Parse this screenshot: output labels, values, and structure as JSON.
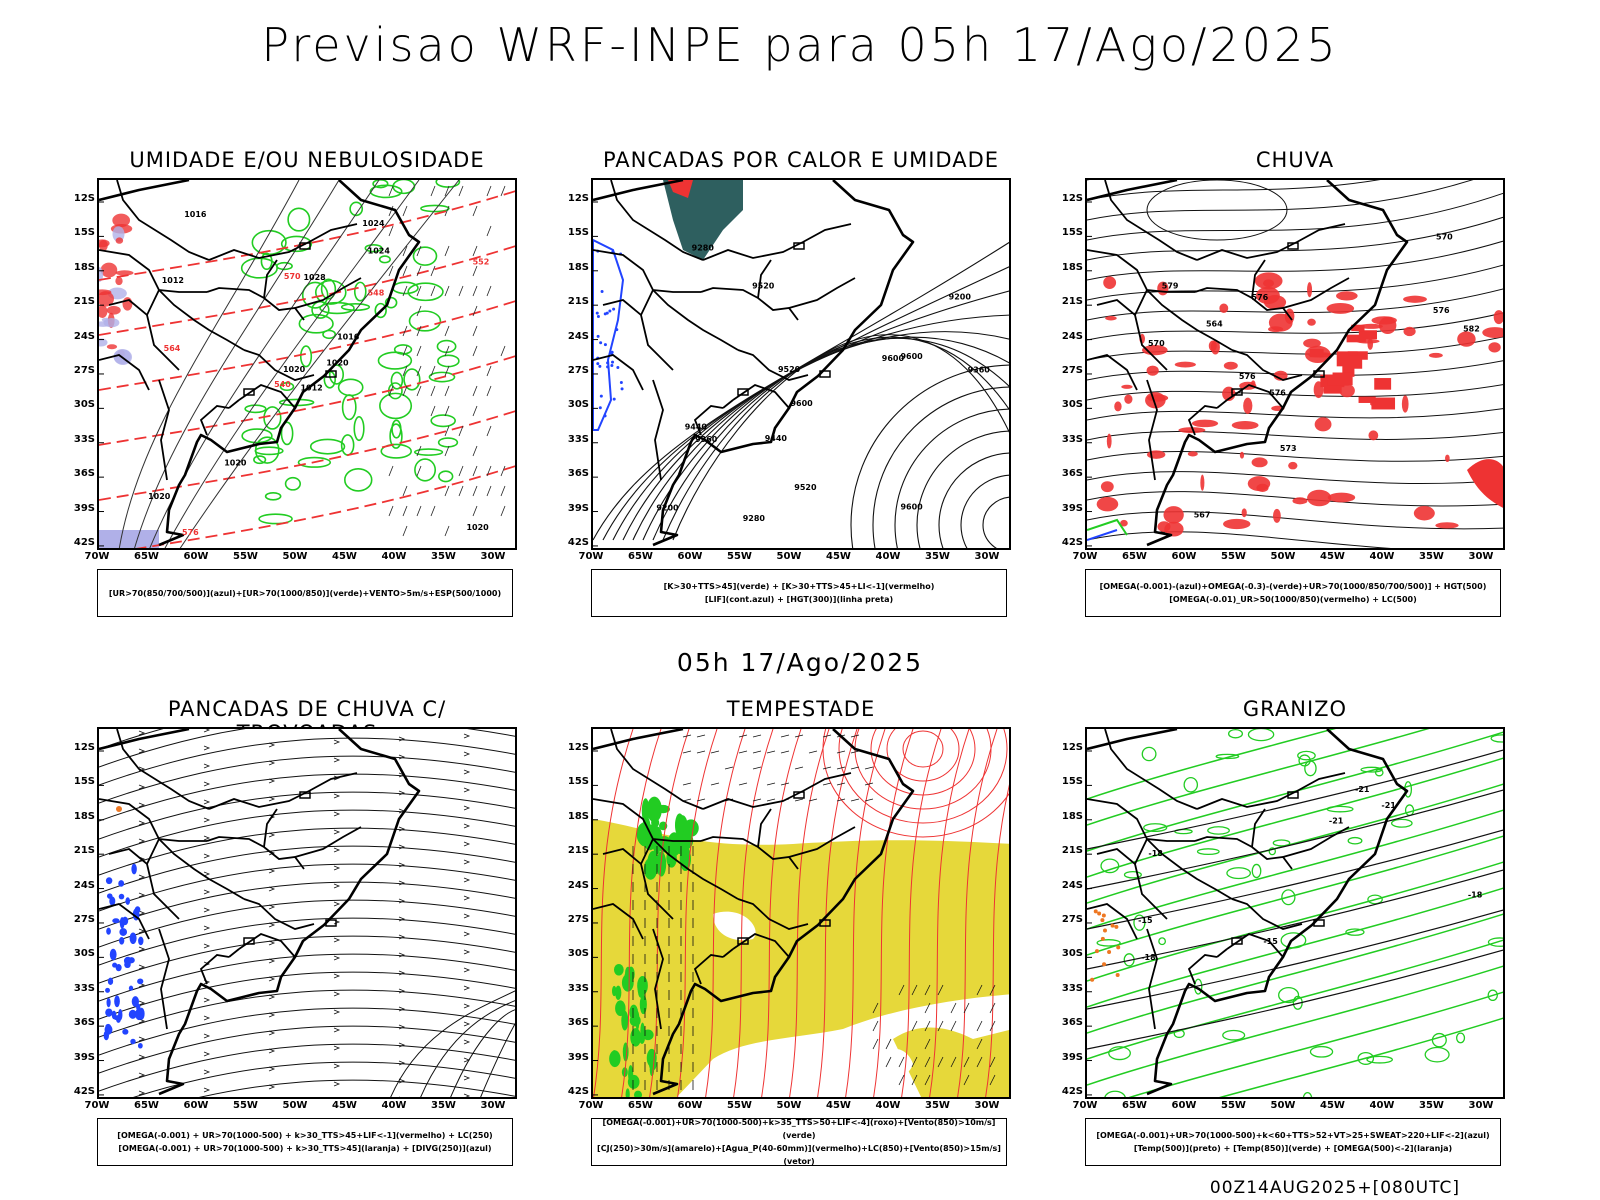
{
  "title": "Previsao WRF-INPE  para 05h 17/Ago/2025",
  "mid_date": "05h 17/Ago/2025",
  "footer": "00Z14AUG2025+[080UTC]",
  "lat_ticks": [
    "12S",
    "15S",
    "18S",
    "21S",
    "24S",
    "27S",
    "30S",
    "33S",
    "36S",
    "39S",
    "42S"
  ],
  "lon_ticks": [
    "70W",
    "65W",
    "60W",
    "55W",
    "50W",
    "45W",
    "40W",
    "35W",
    "30W"
  ],
  "colors": {
    "green": "#22cc22",
    "red": "#ee3333",
    "blue": "#2244ff",
    "yellow": "#e6d83a",
    "teal": "#2e5f5f",
    "lavender": "#b0b0e8",
    "orange": "#ee7722"
  },
  "panels": [
    {
      "title": "UMIDADE E/OU NEBULOSIDADE",
      "legend": [
        "[UR>70(850/700/500)](azul)+[UR>70(1000/850)](verde)+VENTO>5m/s+ESP(500/1000)"
      ],
      "labels": [
        "1012",
        "1012",
        "1020",
        "1020",
        "1016",
        "1020",
        "1024",
        "1028",
        "1024",
        "1020",
        "1016",
        "1020",
        "564",
        "552",
        "540",
        "548",
        "576",
        "570"
      ]
    },
    {
      "title": "PANCADAS POR CALOR E UMIDADE",
      "legend": [
        "[K>30+TTS>45](verde) + [K>30+TTS>45+LI<-1](vermelho)",
        "[LIF](cont.azul) + [HGT(300)](linha preta)"
      ],
      "labels": [
        "9600",
        "9600",
        "9600",
        "9600",
        "9520",
        "9520",
        "9520",
        "9440",
        "9440",
        "9360",
        "9360",
        "9280",
        "9280",
        "9200",
        "9200"
      ]
    },
    {
      "title": "CHUVA",
      "legend": [
        "[OMEGA(-0.001)-(azul)+OMEGA(-0.3)-(verde)+UR>70(1000/850/700/500)] + HGT(500)",
        "[OMEGA(-0.01)_UR>50(1000/850)(vermelho) + LC(500)"
      ],
      "labels": [
        "582",
        "576",
        "570",
        "576",
        "576",
        "573",
        "567",
        "570",
        "579",
        "576",
        "564"
      ]
    },
    {
      "title": "PANCADAS DE CHUVA C/ TROVOADAS",
      "legend": [
        "[OMEGA(-0.001) + UR>70(1000-500) + k>30_TTS>45+LIF<-1](vermelho) + LC(250)",
        "[OMEGA(-0.001) + UR>70(1000-500) + k>30_TTS>45](laranja) + [DIVG(250)](azul)"
      ],
      "labels": []
    },
    {
      "title": "TEMPESTADE",
      "legend": [
        "[OMEGA(-0.001)+UR>70(1000-500)+k>35_TTS>50+LIF<-4](roxo)+[Vento(850)>10m/s](verde)",
        "[CJ(250)>30m/s](amarelo)+[Agua_P(40-60mm)](vermelho)+LC(850)+[Vento(850)>15m/s](vetor)"
      ],
      "labels": []
    },
    {
      "title": "GRANIZO",
      "legend": [
        "[OMEGA(-0.001)+UR>70(1000-500)+k<60+TTS>52+VT>25+SWEAT>220+LIF<-2](azul)",
        "[Temp(500)](preto) + [Temp(850)](verde) + [OMEGA(500)<-2](laranja)"
      ],
      "labels": [
        "-21",
        "-15",
        "-18",
        "-15",
        "-18",
        "-21",
        "-21",
        "-18"
      ]
    }
  ]
}
